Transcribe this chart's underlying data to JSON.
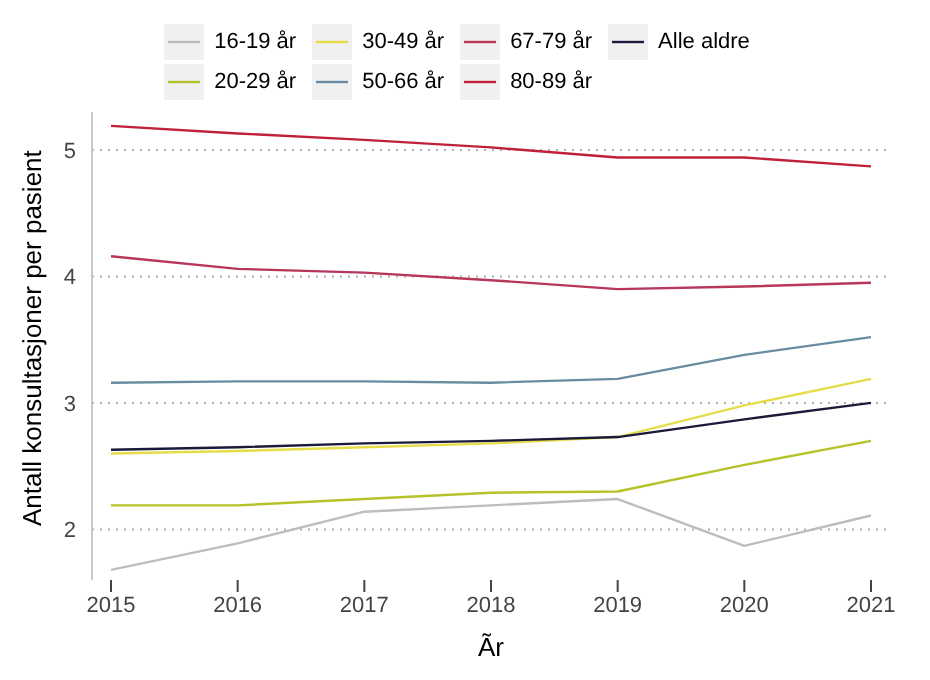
{
  "chart_data": {
    "type": "line",
    "xlabel": "Ãr",
    "ylabel": "Antall konsultasjoner per pasient",
    "x": [
      2015,
      2016,
      2017,
      2018,
      2019,
      2020,
      2021
    ],
    "xlim": [
      2014.85,
      2021.15
    ],
    "ylim": [
      1.6,
      5.3
    ],
    "xticks": [
      2015,
      2016,
      2017,
      2018,
      2019,
      2020,
      2021
    ],
    "yticks": [
      2,
      3,
      4,
      5
    ],
    "grid": "y",
    "legend": "top",
    "series": [
      {
        "name": "16-19 år",
        "color": "#bdbdbd",
        "values": [
          1.68,
          1.89,
          2.14,
          2.19,
          2.24,
          1.87,
          2.11
        ]
      },
      {
        "name": "20-29 år",
        "color": "#b5c22a",
        "values": [
          2.19,
          2.19,
          2.24,
          2.29,
          2.3,
          2.51,
          2.7
        ]
      },
      {
        "name": "30-49 år",
        "color": "#e6dc4a",
        "values": [
          2.6,
          2.62,
          2.65,
          2.68,
          2.73,
          2.98,
          3.19
        ]
      },
      {
        "name": "50-66 år",
        "color": "#6a8ca0",
        "values": [
          3.16,
          3.17,
          3.17,
          3.16,
          3.19,
          3.38,
          3.52
        ]
      },
      {
        "name": "67-79 år",
        "color": "#b8365a",
        "values": [
          4.16,
          4.06,
          4.03,
          3.97,
          3.9,
          3.92,
          3.95
        ]
      },
      {
        "name": "80-89 år",
        "color": "#c0203a",
        "values": [
          5.19,
          5.13,
          5.08,
          5.02,
          4.94,
          4.94,
          4.87
        ]
      },
      {
        "name": "Alle aldre",
        "color": "#1a1a3a",
        "values": [
          2.63,
          2.65,
          2.68,
          2.7,
          2.73,
          2.87,
          3.0
        ]
      }
    ]
  }
}
